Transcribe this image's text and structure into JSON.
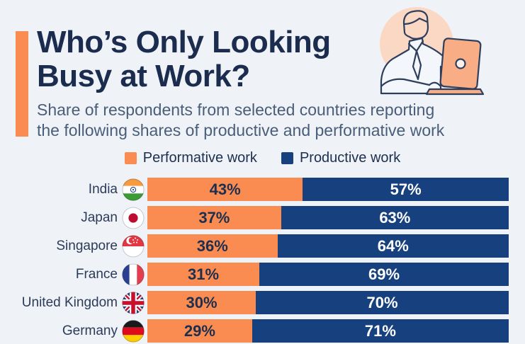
{
  "colors": {
    "background": "#eff3f8",
    "accent": "#fa8c51",
    "performative": "#fa8c51",
    "productive": "#17417e",
    "title_text": "#1b2c4e",
    "subtitle_text": "#4a5d78"
  },
  "header": {
    "title_line1": "Who’s Only Looking",
    "title_line2": "Busy at Work?",
    "subtitle": "Share of respondents from selected countries reporting\nthe following shares of productive and performative work",
    "illustration_icon": "worker-at-laptop-illustration"
  },
  "legend": {
    "performative_label": "Performative work",
    "productive_label": "Productive work"
  },
  "chart_data": {
    "type": "bar",
    "orientation": "horizontal",
    "stacked": true,
    "x_range": [
      0,
      100
    ],
    "value_unit": "%",
    "categories": [
      "India",
      "Japan",
      "Singapore",
      "France",
      "United Kingdom",
      "Germany"
    ],
    "flag_icons": [
      "flag-india-icon",
      "flag-japan-icon",
      "flag-singapore-icon",
      "flag-france-icon",
      "flag-uk-icon",
      "flag-germany-icon"
    ],
    "series": [
      {
        "name": "Performative work",
        "color": "#fa8c51",
        "values": [
          43,
          37,
          36,
          31,
          30,
          29
        ],
        "labels": [
          "43%",
          "37%",
          "36%",
          "31%",
          "30%",
          "29%"
        ]
      },
      {
        "name": "Productive work",
        "color": "#17417e",
        "values": [
          57,
          63,
          64,
          69,
          70,
          71
        ],
        "labels": [
          "57%",
          "63%",
          "64%",
          "69%",
          "70%",
          "71%"
        ]
      }
    ]
  }
}
